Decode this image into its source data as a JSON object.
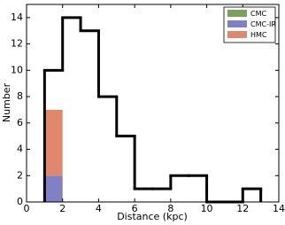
{
  "chart_data": {
    "type": "histogram",
    "xlabel": "Distance (kpc)",
    "ylabel": "Number",
    "bins": [
      1,
      2,
      3,
      4,
      5,
      6,
      7,
      8,
      9,
      10,
      11,
      12,
      13
    ],
    "values": [
      10,
      14,
      13,
      8,
      5,
      1,
      1,
      2,
      2,
      0,
      0,
      1
    ],
    "color": "#000000",
    "series_bins": [
      1,
      2
    ],
    "series": [
      {
        "name": "CMC",
        "color": "#7ba05b",
        "values": [
          0
        ]
      },
      {
        "name": "CMC-IR",
        "color": "#8080c4",
        "values": [
          2
        ]
      },
      {
        "name": "HMC",
        "color": "#e0886c",
        "values": [
          5
        ]
      }
    ],
    "xlim": [
      0,
      14
    ],
    "ylim": [
      0,
      15
    ],
    "xticks": [
      0,
      2,
      4,
      6,
      8,
      10,
      12,
      14
    ],
    "yticks": [
      0,
      2,
      4,
      6,
      8,
      10,
      12,
      14
    ],
    "legend": "upper right"
  }
}
